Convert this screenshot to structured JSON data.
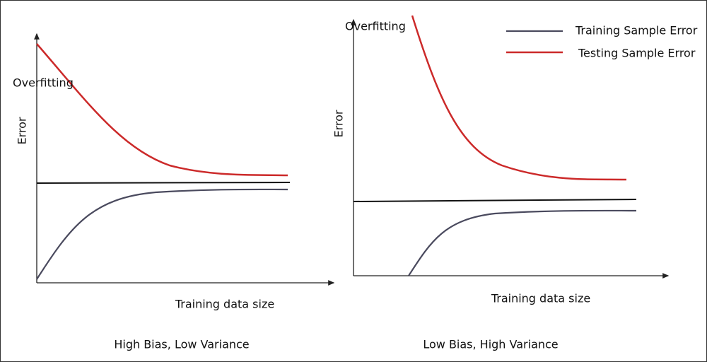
{
  "legend": {
    "items": [
      {
        "label": "Training Sample Error"
      },
      {
        "label": "Testing Sample Error"
      }
    ]
  },
  "panels": [
    {
      "annotation": "Overfitting",
      "y_label": "Error",
      "x_label": "Training data size",
      "caption": "High Bias, Low Variance"
    },
    {
      "annotation": "Overfitting",
      "y_label": "Error",
      "x_label": "Training data size",
      "caption": "Low Bias, High Variance"
    }
  ]
}
